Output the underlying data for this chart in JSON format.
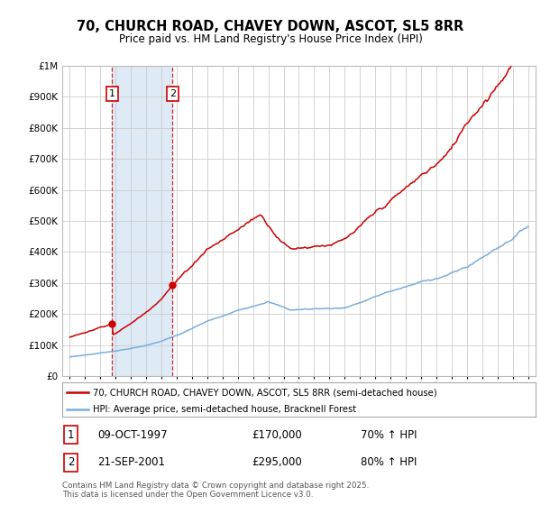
{
  "title": "70, CHURCH ROAD, CHAVEY DOWN, ASCOT, SL5 8RR",
  "subtitle": "Price paid vs. HM Land Registry's House Price Index (HPI)",
  "line1_label": "70, CHURCH ROAD, CHAVEY DOWN, ASCOT, SL5 8RR (semi-detached house)",
  "line2_label": "HPI: Average price, semi-detached house, Bracknell Forest",
  "line1_color": "#cc0000",
  "line2_color": "#7aaddb",
  "highlight_color": "#deeaf5",
  "sale1_date_x": 1997.77,
  "sale1_price": 170000,
  "sale1_text": "09-OCT-1997",
  "sale1_amount": "£170,000",
  "sale1_hpi": "70% ↑ HPI",
  "sale2_date_x": 2001.73,
  "sale2_price": 295000,
  "sale2_text": "21-SEP-2001",
  "sale2_amount": "£295,000",
  "sale2_hpi": "80% ↑ HPI",
  "footnote": "Contains HM Land Registry data © Crown copyright and database right 2025.\nThis data is licensed under the Open Government Licence v3.0.",
  "ylim": [
    0,
    1000000
  ],
  "xlim": [
    1994.5,
    2025.5
  ],
  "background_color": "#ffffff",
  "grid_color": "#cccccc"
}
